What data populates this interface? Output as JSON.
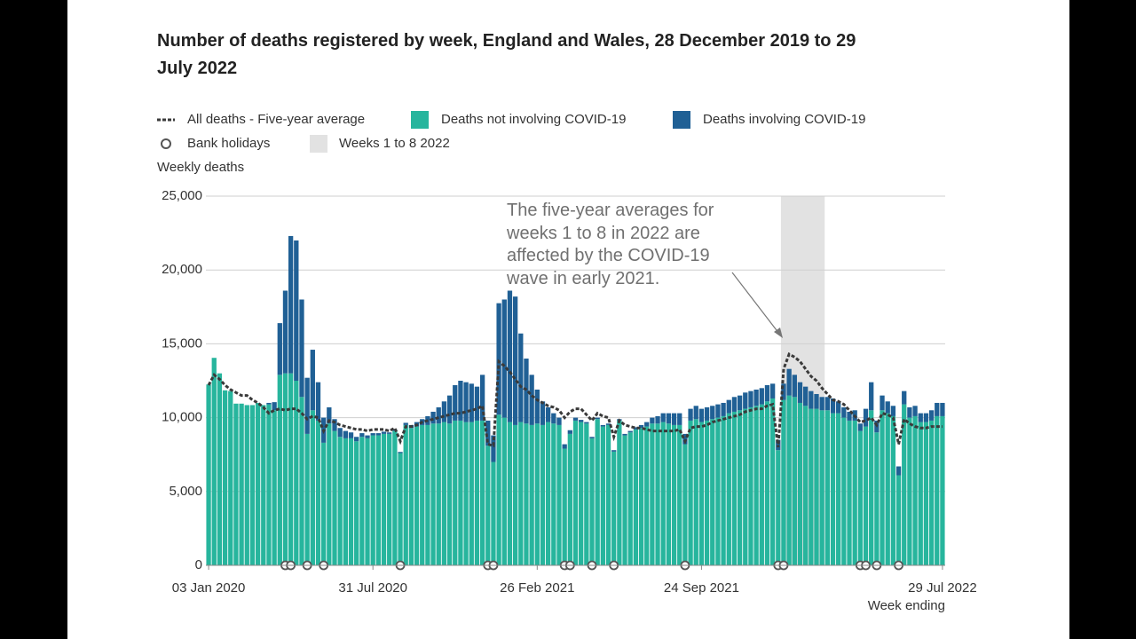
{
  "chart_data": {
    "type": "bar",
    "title": "Number of deaths registered by week, England and Wales, 28 December 2019 to 29 July 2022",
    "y_label": "Weekly deaths",
    "x_label": "Week ending",
    "annotation": "The five-year averages for weeks 1 to 8 in 2022 are affected by the COVID-19 wave in early 2021.",
    "ylim": [
      0,
      25000
    ],
    "yticks": [
      0,
      {
        "value": 5000,
        "label": "5,000"
      },
      {
        "value": 10000,
        "label": "10,000"
      },
      {
        "value": 15000,
        "label": "15,000"
      },
      {
        "value": 20000,
        "label": "20,000"
      },
      {
        "value": 25000,
        "label": "25,000"
      }
    ],
    "grid": true,
    "highlight": {
      "name": "Weeks 1 to 8 2022",
      "color": "#e2e2e2",
      "from": 105,
      "to": 112
    },
    "categories": [
      "03 Jan 2020",
      null,
      null,
      null,
      null,
      null,
      null,
      null,
      null,
      null,
      null,
      null,
      null,
      null,
      null,
      null,
      null,
      null,
      null,
      null,
      null,
      null,
      null,
      null,
      null,
      null,
      null,
      null,
      null,
      null,
      "31 Jul 2020",
      null,
      null,
      null,
      null,
      null,
      null,
      null,
      null,
      null,
      null,
      null,
      null,
      null,
      null,
      null,
      null,
      null,
      null,
      null,
      null,
      null,
      null,
      null,
      null,
      null,
      null,
      null,
      null,
      null,
      "26 Feb 2021",
      null,
      null,
      null,
      null,
      null,
      null,
      null,
      null,
      null,
      null,
      null,
      null,
      null,
      null,
      null,
      null,
      null,
      null,
      null,
      null,
      null,
      null,
      null,
      null,
      null,
      null,
      null,
      null,
      null,
      "24 Sep 2021",
      null,
      null,
      null,
      null,
      null,
      null,
      null,
      null,
      null,
      null,
      null,
      null,
      null,
      null,
      null,
      null,
      null,
      null,
      null,
      null,
      null,
      null,
      null,
      null,
      null,
      null,
      null,
      null,
      null,
      null,
      null,
      null,
      null,
      null,
      null,
      null,
      null,
      null,
      null,
      null,
      null,
      null,
      null,
      "29 Jul 2022"
    ],
    "series": [
      {
        "name": "All deaths - Five-year average",
        "kind": "line",
        "color": "#3a3a3a",
        "dashed": true,
        "values": [
          12200,
          12900,
          12600,
          12200,
          11900,
          11700,
          11500,
          11500,
          11200,
          11000,
          10700,
          10300,
          10500,
          10600,
          10500,
          10600,
          10600,
          10300,
          9900,
          10100,
          10000,
          9100,
          9800,
          9700,
          9500,
          9400,
          9300,
          9200,
          9200,
          9100,
          9200,
          9200,
          9200,
          9100,
          9300,
          8400,
          9400,
          9400,
          9500,
          9700,
          9800,
          9900,
          10000,
          10100,
          10200,
          10300,
          10300,
          10400,
          10500,
          10600,
          10800,
          8200,
          8100,
          13800,
          13500,
          13100,
          12600,
          12100,
          11900,
          11500,
          11200,
          11000,
          10800,
          10700,
          10500,
          10000,
          10400,
          10600,
          10600,
          10200,
          9800,
          10300,
          10100,
          10000,
          8700,
          9800,
          9500,
          9400,
          9300,
          9300,
          9200,
          9100,
          9100,
          9100,
          9100,
          9100,
          9200,
          8400,
          9300,
          9400,
          9400,
          9500,
          9700,
          9800,
          9900,
          10000,
          10100,
          10200,
          10400,
          10500,
          10600,
          10600,
          10800,
          10900,
          8000,
          13300,
          14300,
          14100,
          13800,
          13300,
          12800,
          12500,
          12000,
          11600,
          11200,
          11100,
          10900,
          10500,
          10100,
          9700,
          9800,
          10000,
          9500,
          10300,
          10200,
          10000,
          8200,
          9900,
          9600,
          9400,
          9300,
          9300,
          9400,
          9400,
          9400
        ]
      },
      {
        "name": "Deaths not involving COVID-19",
        "kind": "bar",
        "color": "#27b59d",
        "values": [
          12250,
          14050,
          13000,
          11850,
          11800,
          10950,
          10950,
          10850,
          10850,
          11000,
          10850,
          10900,
          10500,
          12900,
          13000,
          13000,
          12500,
          11400,
          8900,
          10500,
          9800,
          8300,
          9600,
          9100,
          8700,
          8600,
          8600,
          8400,
          8700,
          8600,
          8800,
          8800,
          8900,
          8900,
          9100,
          7600,
          9500,
          9300,
          9400,
          9500,
          9500,
          9600,
          9600,
          9700,
          9600,
          9800,
          9800,
          9700,
          9700,
          9800,
          9800,
          8100,
          7000,
          10200,
          10000,
          9700,
          9500,
          9700,
          9600,
          9500,
          9600,
          9500,
          9700,
          9600,
          9500,
          7900,
          8900,
          9800,
          9700,
          9600,
          8600,
          9900,
          9400,
          9500,
          7700,
          9800,
          8800,
          9000,
          9200,
          9300,
          9400,
          9600,
          9600,
          9700,
          9600,
          9500,
          9500,
          8200,
          9800,
          9900,
          9700,
          9800,
          9900,
          10000,
          10100,
          10300,
          10400,
          10500,
          10600,
          10700,
          10800,
          10900,
          11100,
          11300,
          7800,
          11200,
          11500,
          11400,
          11000,
          10800,
          10600,
          10600,
          10500,
          10500,
          10300,
          10300,
          10000,
          9800,
          9800,
          9100,
          9400,
          10500,
          9000,
          10500,
          10300,
          10100,
          6100,
          10900,
          10000,
          10100,
          9700,
          9700,
          9800,
          10100,
          10100
        ]
      },
      {
        "name": "Deaths involving COVID-19",
        "kind": "bar",
        "color": "#206095",
        "values": [
          0,
          0,
          0,
          0,
          0,
          0,
          0,
          0,
          0,
          0,
          0,
          100,
          550,
          3500,
          5600,
          9300,
          9500,
          6600,
          3800,
          4100,
          2600,
          1700,
          1100,
          800,
          600,
          500,
          400,
          300,
          250,
          200,
          150,
          150,
          150,
          100,
          100,
          80,
          150,
          200,
          300,
          400,
          600,
          800,
          1100,
          1400,
          1900,
          2400,
          2700,
          2700,
          2600,
          2300,
          3100,
          1700,
          1800,
          7550,
          8000,
          8900,
          8700,
          6000,
          4400,
          3400,
          2300,
          1600,
          1000,
          700,
          500,
          300,
          250,
          200,
          150,
          100,
          100,
          100,
          100,
          100,
          100,
          100,
          100,
          100,
          150,
          200,
          300,
          400,
          500,
          600,
          700,
          800,
          800,
          700,
          800,
          900,
          900,
          900,
          900,
          900,
          900,
          900,
          1000,
          1000,
          1100,
          1100,
          1100,
          1100,
          1100,
          1000,
          700,
          1100,
          1800,
          1500,
          1400,
          1300,
          1200,
          1000,
          900,
          900,
          1000,
          800,
          700,
          600,
          700,
          500,
          1200,
          1900,
          800,
          1000,
          800,
          700,
          600,
          900,
          700,
          700,
          600,
          600,
          700,
          900,
          900
        ]
      },
      {
        "name": "Bank holidays",
        "kind": "marker",
        "color": "#555555",
        "values": [
          null,
          null,
          null,
          null,
          null,
          null,
          null,
          null,
          null,
          null,
          null,
          null,
          null,
          null,
          0,
          0,
          null,
          null,
          0,
          null,
          null,
          0,
          null,
          null,
          null,
          null,
          null,
          null,
          null,
          null,
          null,
          null,
          null,
          null,
          null,
          0,
          null,
          null,
          null,
          null,
          null,
          null,
          null,
          null,
          null,
          null,
          null,
          null,
          null,
          null,
          null,
          0,
          0,
          null,
          null,
          null,
          null,
          null,
          null,
          null,
          null,
          null,
          null,
          null,
          null,
          0,
          0,
          null,
          null,
          null,
          0,
          null,
          null,
          null,
          0,
          null,
          null,
          null,
          null,
          null,
          null,
          null,
          null,
          null,
          null,
          null,
          null,
          0,
          null,
          null,
          null,
          null,
          null,
          null,
          null,
          null,
          null,
          null,
          null,
          null,
          null,
          null,
          null,
          null,
          0,
          0,
          null,
          null,
          null,
          null,
          null,
          null,
          null,
          null,
          null,
          null,
          null,
          null,
          null,
          0,
          0,
          null,
          0,
          null,
          null,
          null,
          0,
          null,
          null,
          null,
          null,
          null,
          null,
          null,
          null
        ]
      }
    ]
  }
}
